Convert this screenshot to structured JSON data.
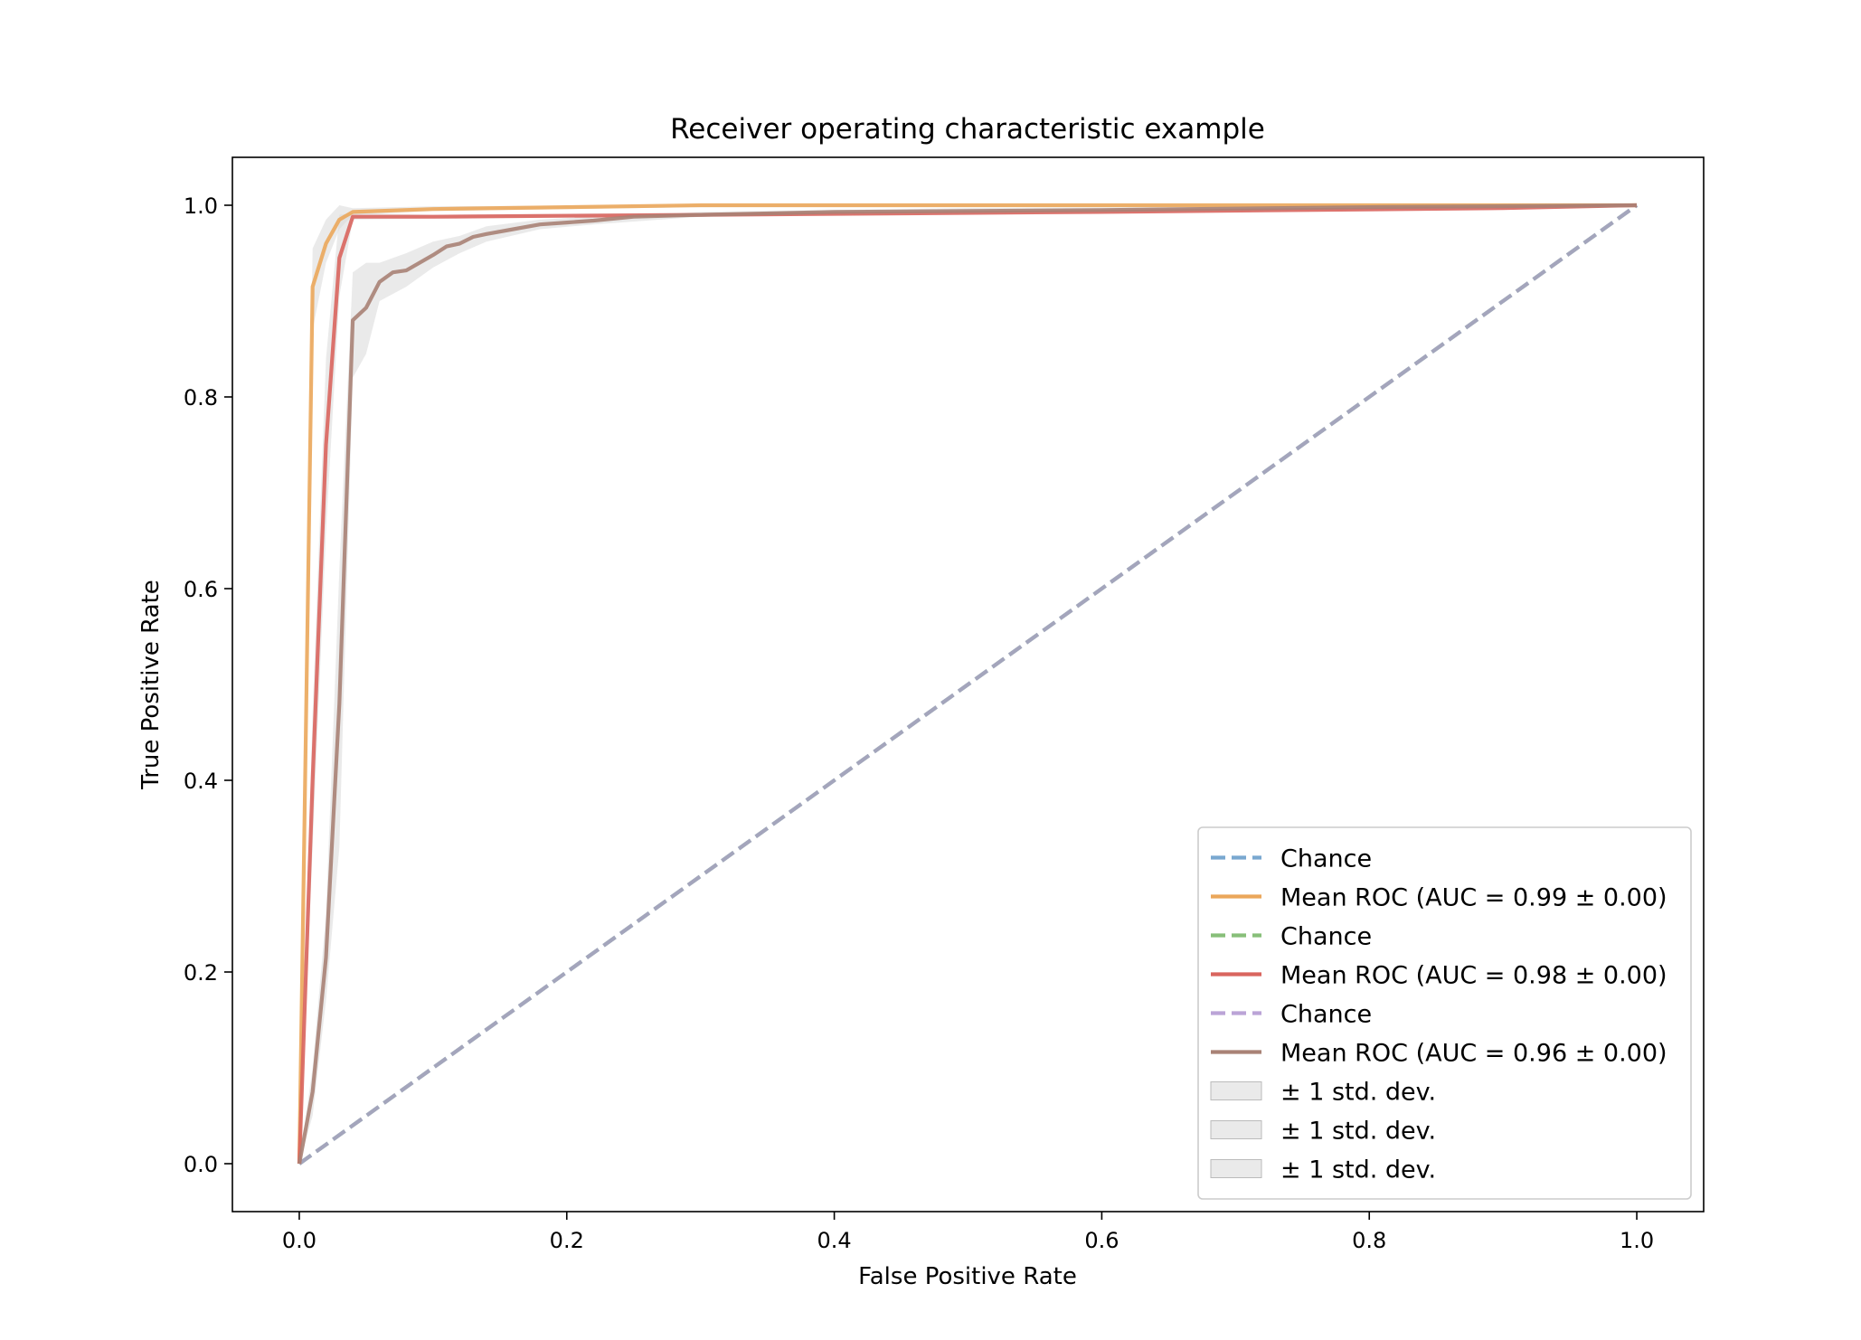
{
  "chart_data": {
    "type": "line",
    "title": "Receiver operating characteristic example",
    "xlabel": "False Positive Rate",
    "ylabel": "True Positive Rate",
    "xlim": [
      -0.05,
      1.05
    ],
    "ylim": [
      -0.05,
      1.05
    ],
    "xticks": [
      "0.0",
      "0.2",
      "0.4",
      "0.6",
      "0.8",
      "1.0"
    ],
    "yticks": [
      "0.0",
      "0.2",
      "0.4",
      "0.6",
      "0.8",
      "1.0"
    ],
    "grid": false,
    "legend_position": "lower-right",
    "series": [
      {
        "name": "Chance",
        "kind": "line",
        "style": "dashed",
        "color": "#6a9ecb",
        "x": [
          0,
          1
        ],
        "y": [
          0,
          1
        ]
      },
      {
        "name": "Mean ROC (AUC = 0.99 ± 0.00)",
        "kind": "line",
        "style": "solid",
        "color": "#eba75b",
        "x": [
          0,
          0.01,
          0.02,
          0.03,
          0.04,
          0.1,
          0.2,
          0.3,
          0.5,
          0.8,
          1.0
        ],
        "y": [
          0,
          0.915,
          0.96,
          0.985,
          0.993,
          0.996,
          0.998,
          1.0,
          1.0,
          1.0,
          1.0
        ]
      },
      {
        "name": "Chance",
        "kind": "line",
        "style": "dashed",
        "color": "#7ab86a",
        "x": [
          0,
          1
        ],
        "y": [
          0,
          1
        ]
      },
      {
        "name": "Mean ROC (AUC = 0.98 ± 0.00)",
        "kind": "line",
        "style": "solid",
        "color": "#d9655e",
        "x": [
          0,
          0.01,
          0.02,
          0.03,
          0.04,
          0.1,
          0.3,
          0.6,
          0.9,
          1.0
        ],
        "y": [
          0,
          0.4,
          0.75,
          0.945,
          0.988,
          0.988,
          0.99,
          0.993,
          0.997,
          1.0
        ]
      },
      {
        "name": "Chance",
        "kind": "line",
        "style": "dashed",
        "color": "#b49ad3",
        "x": [
          0,
          1
        ],
        "y": [
          0,
          1
        ]
      },
      {
        "name": "Mean ROC (AUC = 0.96 ± 0.00)",
        "kind": "line",
        "style": "solid",
        "color": "#a98276",
        "x": [
          0,
          0.01,
          0.02,
          0.03,
          0.04,
          0.05,
          0.06,
          0.07,
          0.08,
          0.09,
          0.1,
          0.11,
          0.12,
          0.13,
          0.14,
          0.16,
          0.18,
          0.2,
          0.22,
          0.25,
          0.3,
          0.4,
          0.6,
          0.8,
          1.0
        ],
        "y": [
          0,
          0.075,
          0.215,
          0.48,
          0.88,
          0.893,
          0.92,
          0.93,
          0.932,
          0.94,
          0.948,
          0.957,
          0.96,
          0.967,
          0.97,
          0.975,
          0.98,
          0.982,
          0.984,
          0.988,
          0.99,
          0.993,
          0.995,
          0.998,
          1.0
        ]
      },
      {
        "name": "± 1 std. dev.",
        "kind": "band",
        "color": "#d9d9d9",
        "x": [
          0,
          0.01,
          0.02,
          0.03,
          0.04,
          0.1,
          0.3,
          1.0
        ],
        "lower": [
          0,
          0.87,
          0.94,
          0.975,
          0.99,
          0.994,
          0.998,
          1.0
        ],
        "upper": [
          0,
          0.955,
          0.985,
          1.0,
          0.997,
          0.999,
          1.0,
          1.0
        ]
      },
      {
        "name": "± 1 std. dev.",
        "kind": "band",
        "color": "#d9d9d9",
        "x": [
          0,
          0.01,
          0.02,
          0.03,
          0.04,
          0.1,
          1.0
        ],
        "lower": [
          0,
          0.33,
          0.66,
          0.905,
          0.985,
          0.986,
          1.0
        ],
        "upper": [
          0,
          0.47,
          0.84,
          0.99,
          0.992,
          0.99,
          1.0
        ]
      },
      {
        "name": "± 1 std. dev.",
        "kind": "band",
        "color": "#d9d9d9",
        "x": [
          0,
          0.01,
          0.02,
          0.03,
          0.04,
          0.05,
          0.06,
          0.08,
          0.1,
          0.12,
          0.14,
          0.18,
          0.22,
          0.3,
          0.5,
          1.0
        ],
        "lower": [
          0,
          0.05,
          0.17,
          0.33,
          0.82,
          0.845,
          0.9,
          0.915,
          0.935,
          0.95,
          0.962,
          0.975,
          0.98,
          0.988,
          0.993,
          1.0
        ],
        "upper": [
          0,
          0.1,
          0.26,
          0.62,
          0.93,
          0.94,
          0.94,
          0.95,
          0.962,
          0.968,
          0.978,
          0.985,
          0.988,
          0.993,
          0.997,
          1.0
        ]
      }
    ]
  }
}
